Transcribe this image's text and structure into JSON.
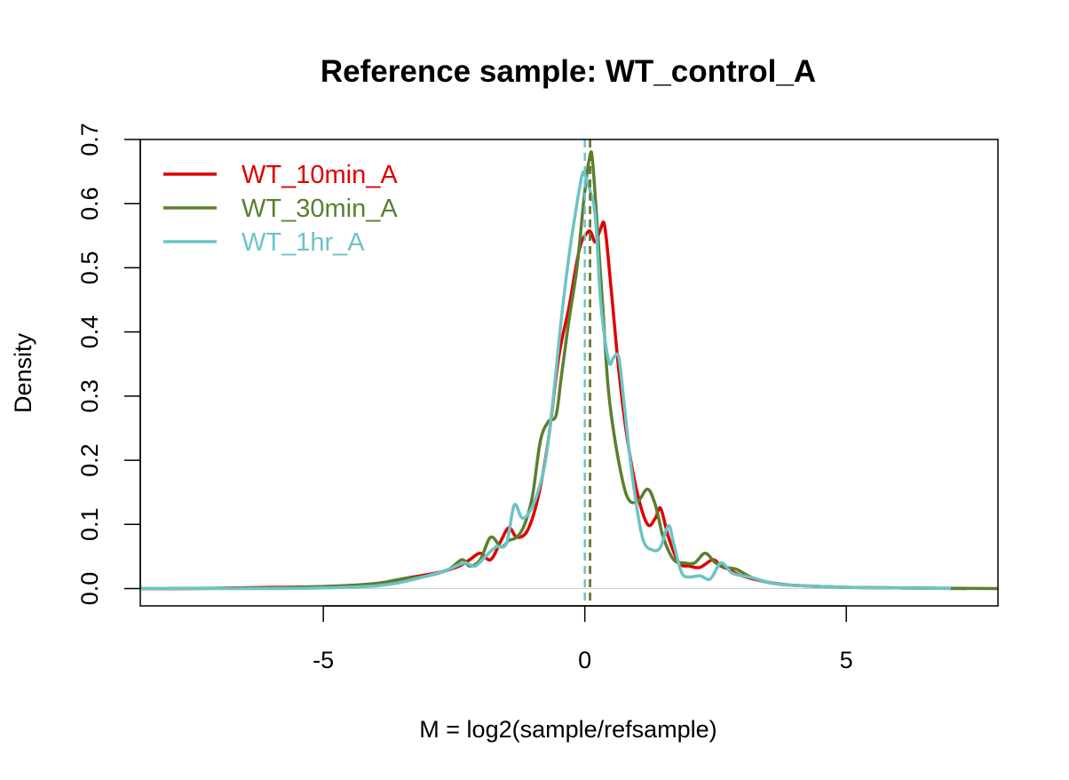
{
  "chart_data": {
    "type": "line",
    "title": "Reference sample: WT_control_A",
    "xlabel": "M = log2(sample/refsample)",
    "ylabel": "Density",
    "xlim": [
      -8.5,
      7.9
    ],
    "ylim": [
      -0.027,
      0.7
    ],
    "x_ticks": [
      -5,
      0,
      5
    ],
    "x_tick_labels": [
      "-5",
      "0",
      "5"
    ],
    "y_ticks": [
      0.0,
      0.1,
      0.2,
      0.3,
      0.4,
      0.5,
      0.6,
      0.7
    ],
    "y_tick_labels": [
      "0.0",
      "0.1",
      "0.2",
      "0.3",
      "0.4",
      "0.5",
      "0.6",
      "0.7"
    ],
    "legend_position": "top-left",
    "reference_hline": 0,
    "series": [
      {
        "name": "WT_10min_A",
        "color": "#DF0000",
        "median_vline": 0.1,
        "x": [
          -9.0,
          -7.5,
          -6.0,
          -5.0,
          -4.0,
          -3.5,
          -3.0,
          -2.7,
          -2.4,
          -2.2,
          -2.0,
          -1.8,
          -1.6,
          -1.45,
          -1.3,
          -1.1,
          -0.9,
          -0.7,
          -0.5,
          -0.3,
          -0.1,
          0.05,
          0.12,
          0.2,
          0.3,
          0.38,
          0.5,
          0.65,
          0.8,
          1.0,
          1.2,
          1.35,
          1.45,
          1.6,
          1.8,
          2.0,
          2.2,
          2.45,
          2.6,
          2.75,
          3.0,
          3.5,
          4.0,
          5.0,
          6.0,
          7.3
        ],
        "y": [
          0.0,
          0.0,
          0.002,
          0.003,
          0.007,
          0.015,
          0.022,
          0.027,
          0.035,
          0.045,
          0.055,
          0.045,
          0.075,
          0.095,
          0.08,
          0.09,
          0.14,
          0.23,
          0.36,
          0.44,
          0.53,
          0.555,
          0.555,
          0.54,
          0.56,
          0.565,
          0.47,
          0.34,
          0.24,
          0.15,
          0.1,
          0.11,
          0.125,
          0.08,
          0.04,
          0.035,
          0.033,
          0.045,
          0.035,
          0.03,
          0.02,
          0.01,
          0.005,
          0.002,
          0.001,
          0.0
        ]
      },
      {
        "name": "WT_30min_A",
        "color": "#5B7F2F",
        "median_vline": 0.1,
        "x": [
          -8.0,
          -6.0,
          -5.0,
          -4.0,
          -3.5,
          -3.0,
          -2.6,
          -2.35,
          -2.2,
          -2.0,
          -1.8,
          -1.6,
          -1.45,
          -1.3,
          -1.15,
          -1.0,
          -0.85,
          -0.7,
          -0.55,
          -0.45,
          -0.3,
          -0.15,
          0.0,
          0.1,
          0.15,
          0.25,
          0.35,
          0.45,
          0.6,
          0.8,
          1.0,
          1.2,
          1.35,
          1.5,
          1.7,
          1.9,
          2.1,
          2.3,
          2.5,
          2.7,
          2.9,
          3.2,
          3.6,
          4.0,
          5.0,
          6.0,
          7.9
        ],
        "y": [
          0.0,
          0.001,
          0.003,
          0.008,
          0.015,
          0.02,
          0.03,
          0.045,
          0.035,
          0.045,
          0.08,
          0.065,
          0.075,
          0.08,
          0.1,
          0.145,
          0.23,
          0.26,
          0.27,
          0.33,
          0.42,
          0.5,
          0.62,
          0.675,
          0.665,
          0.55,
          0.43,
          0.31,
          0.22,
          0.145,
          0.135,
          0.155,
          0.13,
          0.08,
          0.045,
          0.04,
          0.04,
          0.055,
          0.04,
          0.033,
          0.03,
          0.017,
          0.008,
          0.005,
          0.002,
          0.001,
          0.0
        ]
      },
      {
        "name": "WT_1hr_A",
        "color": "#6BC4C6",
        "median_vline": 0.0,
        "x": [
          -8.5,
          -6.0,
          -5.0,
          -4.0,
          -3.5,
          -3.0,
          -2.6,
          -2.3,
          -2.1,
          -1.9,
          -1.7,
          -1.5,
          -1.35,
          -1.2,
          -1.05,
          -0.9,
          -0.75,
          -0.6,
          -0.45,
          -0.3,
          -0.15,
          -0.05,
          0.0,
          0.1,
          0.2,
          0.3,
          0.4,
          0.48,
          0.55,
          0.65,
          0.75,
          0.9,
          1.1,
          1.3,
          1.45,
          1.6,
          1.7,
          1.85,
          2.0,
          2.2,
          2.4,
          2.6,
          2.8,
          3.0,
          3.2,
          3.6,
          4.0,
          5.0,
          6.0,
          7.0
        ],
        "y": [
          0.0,
          0.0,
          0.001,
          0.004,
          0.01,
          0.02,
          0.03,
          0.04,
          0.035,
          0.05,
          0.065,
          0.07,
          0.13,
          0.11,
          0.12,
          0.15,
          0.2,
          0.3,
          0.42,
          0.52,
          0.6,
          0.645,
          0.645,
          0.62,
          0.58,
          0.45,
          0.38,
          0.35,
          0.36,
          0.36,
          0.29,
          0.18,
          0.08,
          0.06,
          0.065,
          0.098,
          0.07,
          0.025,
          0.018,
          0.02,
          0.015,
          0.04,
          0.025,
          0.02,
          0.017,
          0.008,
          0.005,
          0.002,
          0.001,
          0.0
        ]
      }
    ]
  }
}
